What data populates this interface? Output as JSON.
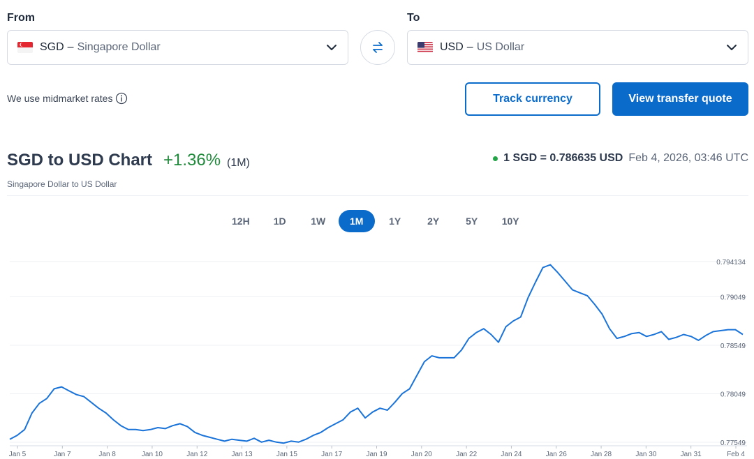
{
  "from": {
    "label": "From",
    "code": "SGD",
    "name": "Singapore Dollar",
    "flag": "sg-flag-icon"
  },
  "to": {
    "label": "To",
    "code": "USD",
    "name": "US Dollar",
    "flag": "us-flag-icon"
  },
  "dash": "–",
  "swap_icon": "swap-arrows-icon",
  "midmarket_text": "We use midmarket rates",
  "buttons": {
    "track": "Track currency",
    "quote": "View transfer quote"
  },
  "chart_header": {
    "title": "SGD to USD Chart",
    "change": "+1.36%",
    "period": "(1M)",
    "subtitle": "Singapore Dollar to US Dollar",
    "rate": "1 SGD = 0.786635 USD",
    "timestamp": "Feb 4, 2026, 03:46 UTC"
  },
  "periods": [
    "12H",
    "1D",
    "1W",
    "1M",
    "1Y",
    "2Y",
    "5Y",
    "10Y"
  ],
  "active_period": "1M",
  "colors": {
    "accent": "#0b6bcb",
    "positive": "#1e8a3a",
    "live_dot": "#22a447",
    "line": "#1a73d9"
  },
  "chart_data": {
    "type": "line",
    "x_ticks": [
      "Jan 5",
      "Jan 7",
      "Jan 8",
      "Jan 10",
      "Jan 12",
      "Jan 13",
      "Jan 15",
      "Jan 17",
      "Jan 19",
      "Jan 20",
      "Jan 22",
      "Jan 24",
      "Jan 26",
      "Jan 28",
      "Jan 30",
      "Jan 31",
      "Feb 4"
    ],
    "y_ticks": [
      "0.794134",
      "0.79049",
      "0.78549",
      "0.78049",
      "0.77549"
    ],
    "y_tick_values": [
      0.794134,
      0.79049,
      0.78549,
      0.78049,
      0.77549
    ],
    "ylim": [
      0.7752,
      0.7952
    ],
    "series": [
      {
        "values": [
          0.7758,
          0.7762,
          0.7768,
          0.7785,
          0.7795,
          0.78,
          0.781,
          0.7812,
          0.7808,
          0.7804,
          0.7802,
          0.7796,
          0.779,
          0.7785,
          0.7778,
          0.7772,
          0.7768,
          0.7768,
          0.7767,
          0.7768,
          0.777,
          0.7769,
          0.7772,
          0.7774,
          0.7771,
          0.7765,
          0.7762,
          0.776,
          0.7758,
          0.7756,
          0.7758,
          0.7757,
          0.7756,
          0.7759,
          0.7755,
          0.7757,
          0.7755,
          0.7754,
          0.7756,
          0.7755,
          0.7758,
          0.7762,
          0.7765,
          0.777,
          0.7774,
          0.7778,
          0.7786,
          0.779,
          0.778,
          0.7786,
          0.779,
          0.7788,
          0.7796,
          0.7805,
          0.781,
          0.7824,
          0.7838,
          0.7844,
          0.7842,
          0.7842,
          0.7842,
          0.785,
          0.7862,
          0.7868,
          0.7872,
          0.7866,
          0.7858,
          0.7874,
          0.788,
          0.7884,
          0.7904,
          0.792,
          0.7935,
          0.7938,
          0.793,
          0.7921,
          0.7912,
          0.7909,
          0.7906,
          0.7897,
          0.7887,
          0.7872,
          0.7862,
          0.7864,
          0.7867,
          0.7868,
          0.7864,
          0.7866,
          0.7869,
          0.7861,
          0.7863,
          0.7866,
          0.7864,
          0.786,
          0.7865,
          0.7869,
          0.787,
          0.7871,
          0.7871,
          0.7866
        ]
      }
    ]
  }
}
